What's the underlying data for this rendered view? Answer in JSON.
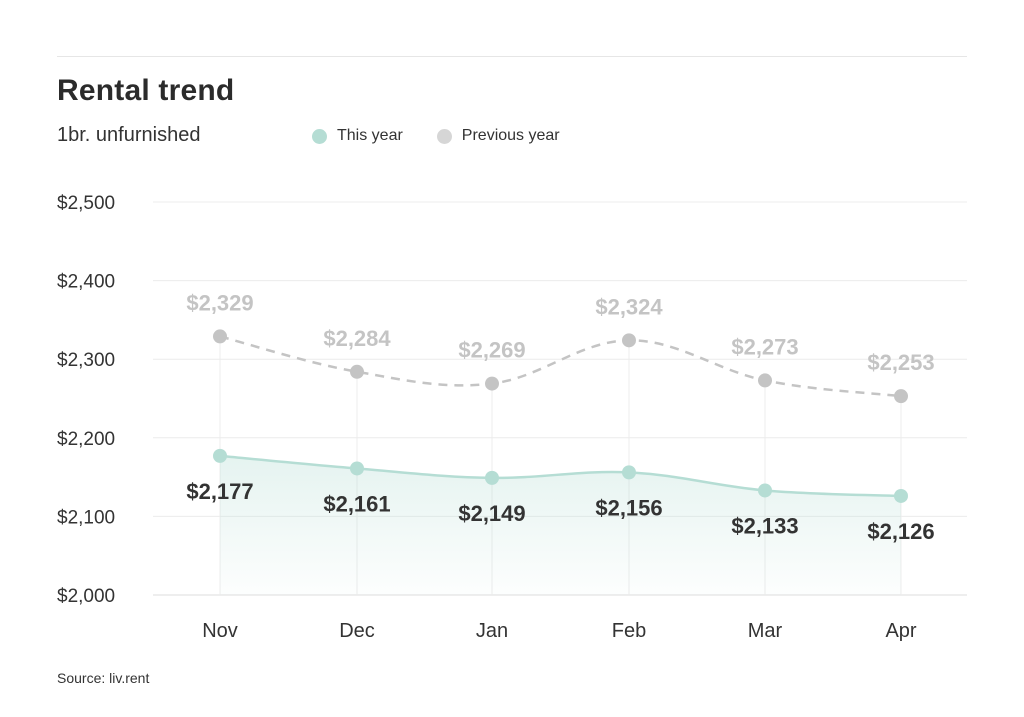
{
  "title": "Rental trend",
  "subtitle": "1br. unfurnished",
  "source": "Source: liv.rent",
  "legend": [
    {
      "label": "This year",
      "color": "#b5ddd4"
    },
    {
      "label": "Previous year",
      "color": "#d6d6d6"
    }
  ],
  "chart_data": {
    "type": "line",
    "title": "Rental trend",
    "subtitle": "1br. unfurnished",
    "categories": [
      "Nov",
      "Dec",
      "Jan",
      "Feb",
      "Mar",
      "Apr"
    ],
    "ylim": [
      2000,
      2500
    ],
    "yticks": [
      2000,
      2100,
      2200,
      2300,
      2400,
      2500
    ],
    "ytick_labels": [
      "$2,000",
      "$2,100",
      "$2,200",
      "$2,300",
      "$2,400",
      "$2,500"
    ],
    "grid": true,
    "legend_position": "top",
    "series": [
      {
        "name": "This year",
        "color": "#b5ddd4",
        "style": "solid-area",
        "values": [
          2177,
          2161,
          2149,
          2156,
          2133,
          2126
        ],
        "labels": [
          "$2,177",
          "$2,161",
          "$2,149",
          "$2,156",
          "$2,133",
          "$2,126"
        ]
      },
      {
        "name": "Previous year",
        "color": "#c4c4c4",
        "style": "dashed",
        "values": [
          2329,
          2284,
          2269,
          2324,
          2273,
          2253
        ],
        "labels": [
          "$2,329",
          "$2,284",
          "$2,269",
          "$2,324",
          "$2,273",
          "$2,253"
        ]
      }
    ]
  }
}
